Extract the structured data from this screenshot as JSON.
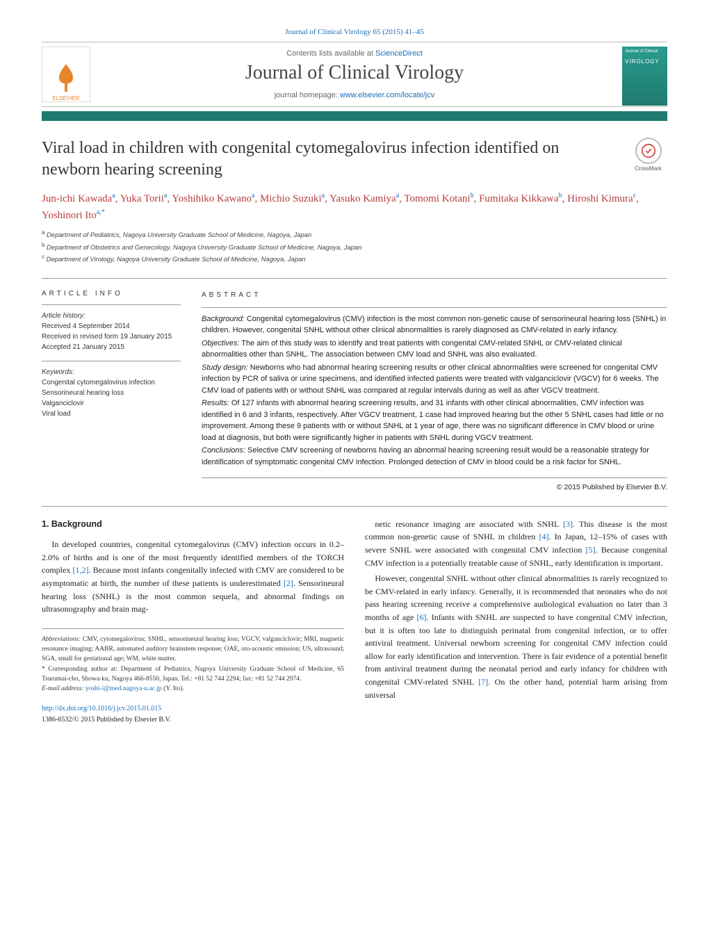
{
  "meta": {
    "journal_ref": "Journal of Clinical Virology 65 (2015) 41–45",
    "contents_prefix": "Contents lists available at ",
    "contents_link": "ScienceDirect",
    "journal_title": "Journal of Clinical Virology",
    "homepage_prefix": "journal homepage: ",
    "homepage_link": "www.elsevier.com/locate/jcv",
    "publisher_label": "ELSEVIER",
    "cover_label": "VIROLOGY",
    "crossmark_label": "CrossMark"
  },
  "article": {
    "title": "Viral load in children with congenital cytomegalovirus infection identified on newborn hearing screening",
    "authors_html": "Jun-ichi Kawada",
    "authors": [
      {
        "name": "Jun-ichi Kawada",
        "aff": "a"
      },
      {
        "name": "Yuka Torii",
        "aff": "a"
      },
      {
        "name": "Yoshihiko Kawano",
        "aff": "a"
      },
      {
        "name": "Michio Suzuki",
        "aff": "a"
      },
      {
        "name": "Yasuko Kamiya",
        "aff": "a"
      },
      {
        "name": "Tomomi Kotani",
        "aff": "b"
      },
      {
        "name": "Fumitaka Kikkawa",
        "aff": "b"
      },
      {
        "name": "Hiroshi Kimura",
        "aff": "c"
      },
      {
        "name": "Yoshinori Ito",
        "aff": "a,*"
      }
    ],
    "affiliations": {
      "a": "Department of Pediatrics, Nagoya University Graduate School of Medicine, Nagoya, Japan",
      "b": "Department of Obstetrics and Genecology, Nagoya University Graduate School of Medicine, Nagoya, Japan",
      "c": "Department of Virology, Nagoya University Graduate School of Medicine, Nagoya, Japan"
    }
  },
  "info": {
    "heading": "article info",
    "history_label": "Article history:",
    "received": "Received 4 September 2014",
    "revised": "Received in revised form 19 January 2015",
    "accepted": "Accepted 21 January 2015",
    "keywords_label": "Keywords:",
    "keywords": [
      "Congenital cytomegalovirus infection",
      "Sensorineural hearing loss",
      "Valganciclovir",
      "Viral load"
    ]
  },
  "abstract": {
    "heading": "abstract",
    "sections": {
      "background_label": "Background:",
      "background": "Congenital cytomegalovirus (CMV) infection is the most common non-genetic cause of sensorineural hearing loss (SNHL) in children. However, congenital SNHL without other clinical abnormalities is rarely diagnosed as CMV-related in early infancy.",
      "objectives_label": "Objectives:",
      "objectives": "The aim of this study was to identify and treat patients with congenital CMV-related SNHL or CMV-related clinical abnormalities other than SNHL. The association between CMV load and SNHL was also evaluated.",
      "design_label": "Study design:",
      "design": "Newborns who had abnormal hearing screening results or other clinical abnormalities were screened for congenital CMV infection by PCR of saliva or urine specimens, and identified infected patients were treated with valganciclovir (VGCV) for 6 weeks. The CMV load of patients with or without SNHL was compared at regular intervals during as well as after VGCV treatment.",
      "results_label": "Results:",
      "results": "Of 127 infants with abnormal hearing screening results, and 31 infants with other clinical abnormalities, CMV infection was identified in 6 and 3 infants, respectively. After VGCV treatment, 1 case had improved hearing but the other 5 SNHL cases had little or no improvement. Among these 9 patients with or without SNHL at 1 year of age, there was no significant difference in CMV blood or urine load at diagnosis, but both were significantly higher in patients with SNHL during VGCV treatment.",
      "conclusions_label": "Conclusions:",
      "conclusions": "Selective CMV screening of newborns having an abnormal hearing screening result would be a reasonable strategy for identification of symptomatic congenital CMV infection. Prolonged detection of CMV in blood could be a risk factor for SNHL."
    },
    "copyright": "© 2015 Published by Elsevier B.V."
  },
  "body": {
    "section_head": "1. Background",
    "left": [
      "In developed countries, congenital cytomegalovirus (CMV) infection occurs in 0.2–2.0% of births and is one of the most frequently identified members of the TORCH complex [1,2]. Because most infants congenitally infected with CMV are considered to be asymptomatic at birth, the number of these patients is underestimated [2]. Sensorineural hearing loss (SNHL) is the most common sequela, and abnormal findings on ultrasonography and brain mag-"
    ],
    "right": [
      "netic resonance imaging are associated with SNHL [3]. This disease is the most common non-genetic cause of SNHL in children [4]. In Japan, 12–15% of cases with severe SNHL were associated with congenital CMV infection [5]. Because congenital CMV infection is a potentially treatable cause of SNHL, early identification is important.",
      "However, congenital SNHL without other clinical abnormalities is rarely recognized to be CMV-related in early infancy. Generally, it is recommended that neonates who do not pass hearing screening receive a comprehensive audiological evaluation no later than 3 months of age [6]. Infants with SNHL are suspected to have congenital CMV infection, but it is often too late to distinguish perinatal from congenital infection, or to offer antiviral treatment. Universal newborn screening for congenital CMV infection could allow for early identification and intervention. There is fair evidence of a potential benefit from antiviral treatment during the neonatal period and early infancy for children with congenital CMV-related SNHL [7]. On the other hand, potential harm arising from universal"
    ]
  },
  "footnotes": {
    "abbrev_label": "Abbreviations:",
    "abbrev": "CMV, cytomegalovirus; SNHL, sensorineural hearing loss; VGCV, valganciclovir; MRI, magnetic resonance imaging; AABR, automated auditory brainstem response; OAE, oto-acoustic emission; US, ultrasound; SGA, small for gestational age; WM, white matter.",
    "corr_label": "* Corresponding author at:",
    "corr": "Department of Pediatrics, Nagoya University Graduate School of Medicine, 65 Tsurumai-cho, Showa-ku, Nagoya 466-8550, Japan. Tel.: +81 52 744 2294; fax: +81 52 744 2974.",
    "email_label": "E-mail address:",
    "email": "yoshi-i@med.nagoya-u.ac.jp",
    "email_name": "(Y. Ito).",
    "doi_link": "http://dx.doi.org/10.1016/j.jcv.2015.01.015",
    "issn": "1386-6532/© 2015 Published by Elsevier B.V."
  },
  "refs": {
    "r12": "[1,2]",
    "r2": "[2]",
    "r3": "[3]",
    "r4": "[4]",
    "r5": "[5]",
    "r6": "[6]",
    "r7": "[7]"
  },
  "colors": {
    "bar": "#1f7a6f",
    "link": "#1a6bb8",
    "author": "#b83d3d",
    "elsevier": "#e8842a"
  }
}
